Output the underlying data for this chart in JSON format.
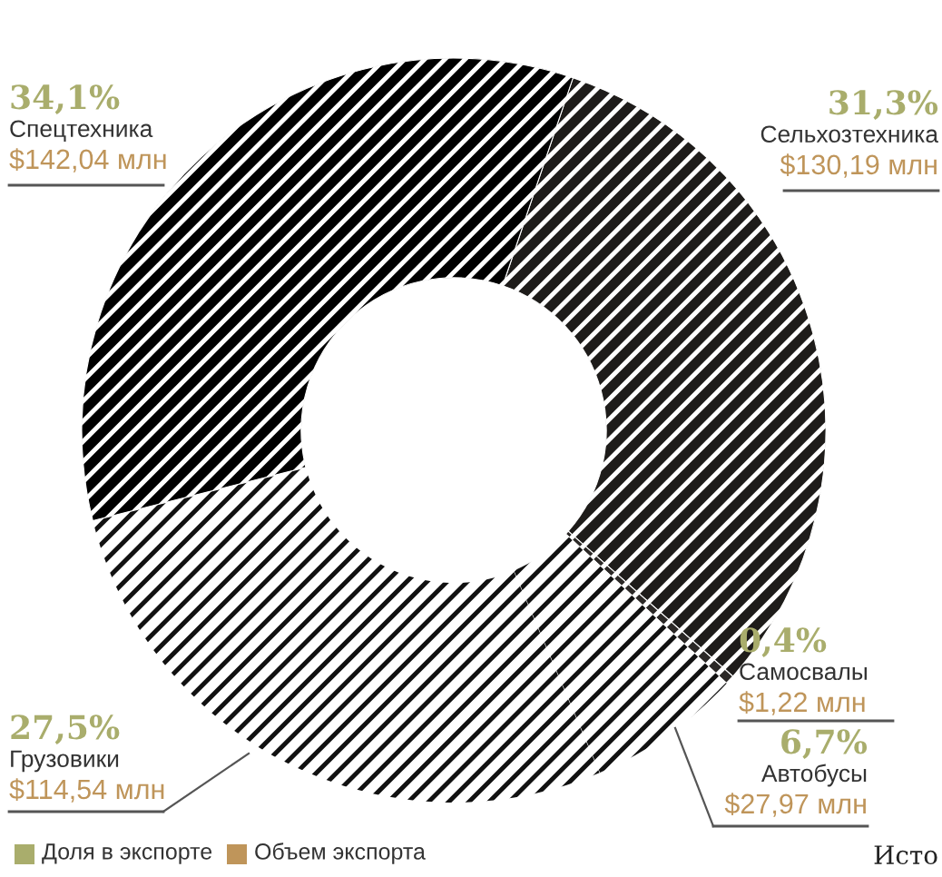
{
  "chart_data": {
    "type": "donut",
    "categories": [
      "Сельхозтехника",
      "Самосвалы",
      "Автобусы",
      "Грузовики",
      "Спецтехника"
    ],
    "colors": [
      "#1e1c1a",
      "#2b2826",
      "#ffffff",
      "#ffffff",
      "#000000"
    ],
    "values": [
      31.3,
      0.4,
      6.7,
      27.5,
      34.1
    ],
    "value_labels": [
      "31,3%",
      "0,4%",
      "6,7%",
      "27,5%",
      "34,1%"
    ],
    "annotations": [
      {
        "text": "$130,19 млн",
        "x": "Сельхозтехника"
      },
      {
        "text": "$1,22 млн",
        "x": "Самосвалы"
      },
      {
        "text": "$27,97 млн",
        "x": "Автобусы"
      },
      {
        "text": "$114,54 млн",
        "x": "Грузовики"
      },
      {
        "text": "$142,04 млн",
        "x": "Спецтехника"
      },
      "Доля в экспорте",
      "Объем экспорта",
      "Исто"
    ]
  }
}
